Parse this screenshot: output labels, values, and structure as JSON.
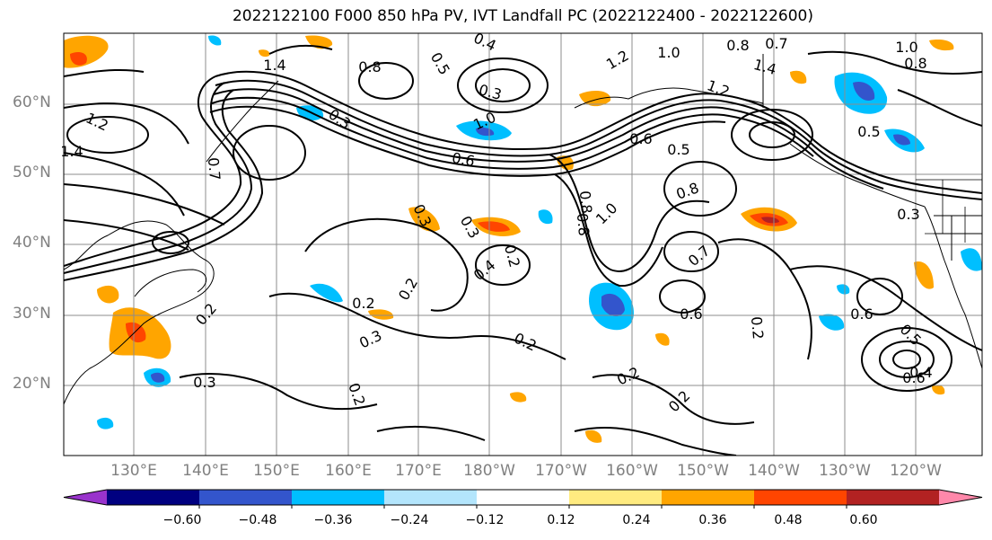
{
  "title": "2022122100 F000 850 hPa PV, IVT Landfall PC (2022122400 - 2022122600)",
  "lat_labels": [
    "60°N",
    "50°N",
    "40°N",
    "30°N",
    "20°N"
  ],
  "lon_labels": [
    "130°E",
    "140°E",
    "150°E",
    "160°E",
    "170°E",
    "180°W",
    "170°W",
    "160°W",
    "150°W",
    "140°W",
    "130°W",
    "120°W"
  ],
  "colorbar": {
    "colors": [
      "#9933cc",
      "#000080",
      "#3355cc",
      "#00bfff",
      "#b3e5fc",
      "#ffffff",
      "#ffeb80",
      "#ffa500",
      "#ff4500",
      "#b22222",
      "#ff88aa"
    ],
    "tick_labels": [
      "−0.60",
      "−0.48",
      "−0.36",
      "−0.24",
      "−0.12",
      "0.12",
      "0.24",
      "0.36",
      "0.48",
      "0.60"
    ]
  },
  "contour_labels": [
    "1.4",
    "0.8",
    "0.4",
    "0.5",
    "1.2",
    "1.0",
    "0.8",
    "0.7",
    "1.0",
    "0.8",
    "1.2",
    "0.3",
    "1.0",
    "0.3",
    "1.4",
    "1.2",
    "0.6",
    "0.6",
    "0.5",
    "0.7",
    "0.8",
    "0.5",
    "0.6",
    "0.3",
    "0.3",
    "0.4",
    "0.2",
    "1.0",
    "0.8",
    "0.8",
    "0.7",
    "0.3",
    "0.2",
    "0.2",
    "0.2",
    "0.6",
    "0.5",
    "0.2",
    "0.3",
    "0.2",
    "0.4",
    "0.2",
    "0.3",
    "0.2",
    "0.6",
    "0.2",
    "1.4"
  ]
}
